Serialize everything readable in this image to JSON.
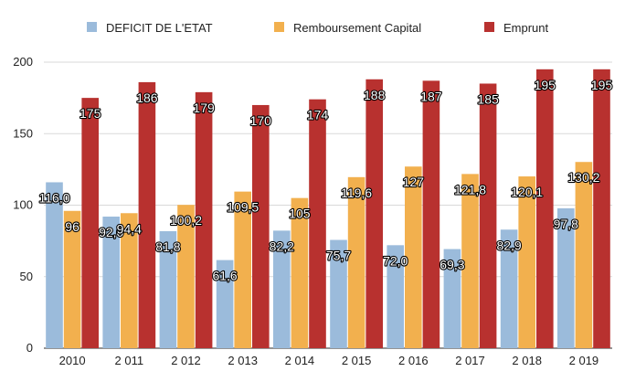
{
  "chart_data": {
    "type": "bar",
    "title": "",
    "xlabel": "",
    "ylabel": "",
    "ylim": [
      0,
      200
    ],
    "yticks": [
      0,
      50,
      100,
      150,
      200
    ],
    "grid": true,
    "legend": "top",
    "categories": [
      "2010",
      "2 011",
      "2 012",
      "2 013",
      "2 014",
      "2 015",
      "2 016",
      "2 017",
      "2 018",
      "2 019"
    ],
    "series": [
      {
        "name": "DEFICIT DE L'ETAT",
        "color": "#9bbbdb",
        "values": [
          116.0,
          92.0,
          81.8,
          61.6,
          82.2,
          75.7,
          72.0,
          69.3,
          82.9,
          97.8
        ],
        "labels": [
          "116,0",
          "92,0",
          "81,8",
          "61,6",
          "82,2",
          "75,7",
          "72,0",
          "69,3",
          "82,9",
          "97,8"
        ]
      },
      {
        "name": "Remboursement Capital",
        "color": "#f2b04e",
        "values": [
          96,
          94.4,
          100.2,
          109.5,
          105,
          119.6,
          127,
          121.8,
          120.1,
          130.2
        ],
        "labels": [
          "96",
          "94,4",
          "100,2",
          "109,5",
          "105",
          "119,6",
          "127",
          "121,8",
          "120,1",
          "130,2"
        ]
      },
      {
        "name": "Emprunt",
        "color": "#b8312f",
        "values": [
          175,
          186,
          179,
          170,
          174,
          188,
          187,
          185,
          195,
          195
        ],
        "labels": [
          "175",
          "186",
          "179",
          "170",
          "174",
          "188",
          "187",
          "185",
          "195",
          "195"
        ]
      }
    ]
  }
}
